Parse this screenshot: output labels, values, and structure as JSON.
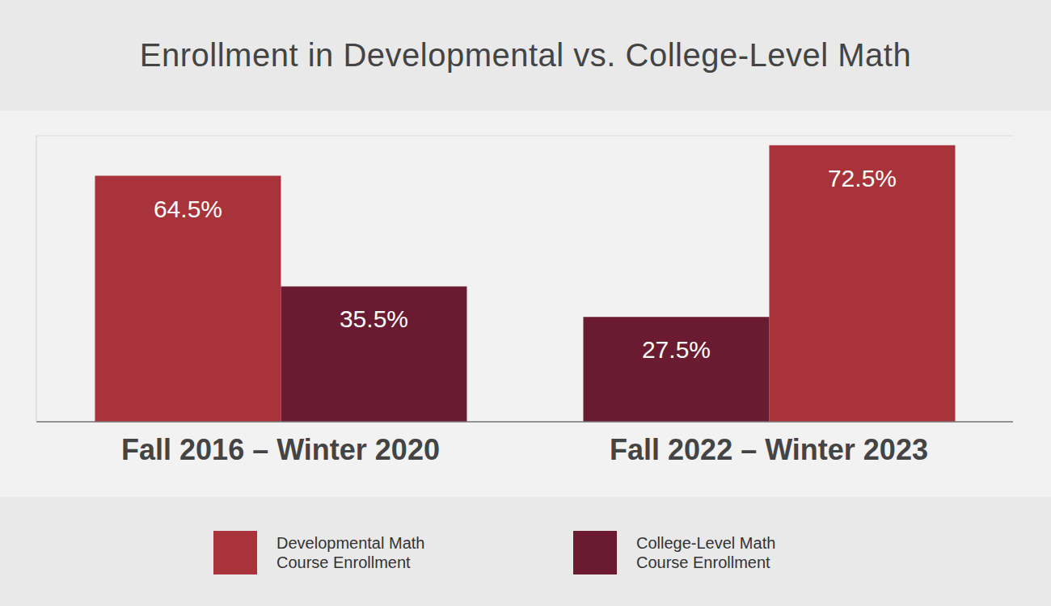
{
  "chart_data": {
    "type": "bar",
    "title": "Enrollment in Developmental vs. College-Level Math",
    "categories": [
      "Fall 2016 – Winter 2020",
      "Fall 2022 – Winter 2023"
    ],
    "series": [
      {
        "name": "Developmental Math Course Enrollment",
        "color": "#a8333b",
        "values": [
          64.5,
          72.5
        ],
        "value_labels": [
          "64.5%",
          "72.5%"
        ]
      },
      {
        "name": "College-Level Math Course Enrollment",
        "color": "#6a1b31",
        "values": [
          35.5,
          27.5
        ],
        "value_labels": [
          "35.5%",
          "27.5%"
        ]
      }
    ],
    "ylim": [
      0,
      75
    ],
    "yticks": [
      0,
      10,
      20,
      30,
      40,
      50,
      60,
      70
    ],
    "grid": true,
    "legend": "bottom",
    "data_labels": true,
    "tick_labels": "x"
  }
}
